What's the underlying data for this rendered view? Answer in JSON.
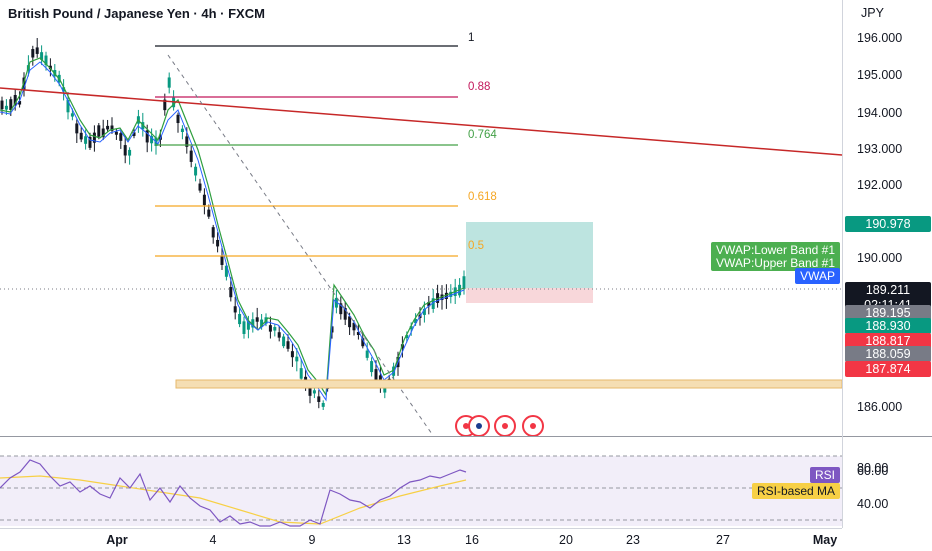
{
  "header": {
    "title": "British Pound / Japanese Yen · 4h · FXCM"
  },
  "price_scale": {
    "currency": "JPY",
    "ticks": [
      "196.000",
      "195.000",
      "194.000",
      "193.000",
      "192.000",
      "190.000",
      "186.000"
    ],
    "labels": {
      "target": "190.978",
      "last_price": "189.211",
      "countdown": "02:11:41",
      "l1": "189.195",
      "l2": "188.930",
      "l3": "188.817",
      "l4": "188.059",
      "stop": "187.874"
    }
  },
  "rsi_scale": {
    "ticks": [
      "80.00",
      "60.00",
      "40.00"
    ]
  },
  "time_scale": {
    "labels": [
      "Apr",
      "4",
      "9",
      "13",
      "16",
      "20",
      "23",
      "27",
      "May"
    ]
  },
  "fib_levels": [
    "1",
    "0.88",
    "0.764",
    "0.618",
    "0.5"
  ],
  "tags": {
    "vwap_lower": "VWAP:Lower Band #1",
    "vwap_upper": "VWAP:Upper Band #1",
    "vwap": "VWAP",
    "rsi": "RSI",
    "rsi_ma": "RSI-based MA"
  },
  "colors": {
    "up": "#089981",
    "down": "#131722",
    "trendline": "#c62828",
    "fib_1": "#131722",
    "fib_088": "#c2185b",
    "fib_0764": "#43a047",
    "fib_0618": "#f5a623",
    "fib_05": "#f5a623",
    "target_zone": "#b2dfdb",
    "stop_zone": "#f8d7da",
    "rsi_line": "#7e57c2",
    "rsi_ma": "#f7d046",
    "vwap_tag": "#2962ff",
    "vwap_band_tag": "#4caf50"
  }
}
